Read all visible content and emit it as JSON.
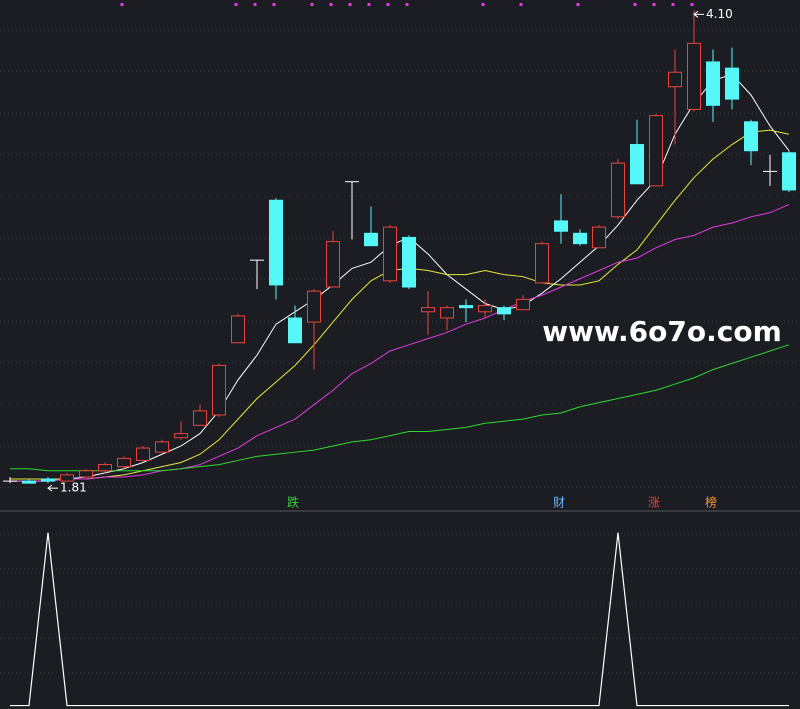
{
  "chart_data": [
    {
      "type": "candlestick",
      "open": [
        1.82,
        1.82,
        1.83,
        1.82,
        1.84,
        1.87,
        1.89,
        1.92,
        1.96,
        2.03,
        2.09,
        2.14,
        2.49,
        2.89,
        3.18,
        2.61,
        2.59,
        2.76,
        3.27,
        3.02,
        2.79,
        3.0,
        2.64,
        2.61,
        2.67,
        2.64,
        2.66,
        2.65,
        2.78,
        3.08,
        3.02,
        2.95,
        3.1,
        3.45,
        3.25,
        3.73,
        3.62,
        3.85,
        3.82,
        3.56,
        3.32,
        3.41
      ],
      "high": [
        1.84,
        1.83,
        1.84,
        1.86,
        1.88,
        1.91,
        1.94,
        1.99,
        2.02,
        2.11,
        2.19,
        2.39,
        2.63,
        2.89,
        3.19,
        2.67,
        2.75,
        3.03,
        3.27,
        3.15,
        3.06,
        3.01,
        2.74,
        2.67,
        2.7,
        2.7,
        2.67,
        2.72,
        2.98,
        3.21,
        3.04,
        3.06,
        3.38,
        3.57,
        3.6,
        3.91,
        4.1,
        3.91,
        3.92,
        3.57,
        3.4,
        3.42
      ],
      "low": [
        1.81,
        1.82,
        1.81,
        1.82,
        1.84,
        1.86,
        1.88,
        1.92,
        1.96,
        2.02,
        2.09,
        2.13,
        2.49,
        2.75,
        2.7,
        2.49,
        2.36,
        2.76,
        2.99,
        2.96,
        2.78,
        2.75,
        2.53,
        2.55,
        2.59,
        2.61,
        2.6,
        2.65,
        2.78,
        2.97,
        2.96,
        2.95,
        3.09,
        3.26,
        3.25,
        3.45,
        3.61,
        3.56,
        3.62,
        3.35,
        3.25,
        3.22
      ],
      "close": [
        1.82,
        1.81,
        1.82,
        1.85,
        1.87,
        1.9,
        1.93,
        1.98,
        2.01,
        2.05,
        2.16,
        2.38,
        2.62,
        2.89,
        2.77,
        2.49,
        2.74,
        2.98,
        3.27,
        2.96,
        3.05,
        2.76,
        2.66,
        2.66,
        2.66,
        2.67,
        2.63,
        2.7,
        2.97,
        3.03,
        2.97,
        3.05,
        3.36,
        3.26,
        3.59,
        3.8,
        3.94,
        3.64,
        3.67,
        3.42,
        3.32,
        3.23
      ],
      "up_color": "#e8443c",
      "down_color": "#55f7f7",
      "flat_color": "#ffffff",
      "series": [
        {
          "color": "#ffffff",
          "values": [
            1.82,
            1.82,
            1.82,
            1.83,
            1.84,
            1.86,
            1.88,
            1.91,
            1.95,
            1.99,
            2.05,
            2.16,
            2.31,
            2.43,
            2.58,
            2.64,
            2.7,
            2.77,
            2.85,
            2.88,
            2.96,
            3.0,
            2.92,
            2.82,
            2.75,
            2.68,
            2.65,
            2.67,
            2.73,
            2.8,
            2.88,
            2.96,
            3.06,
            3.18,
            3.28,
            3.5,
            3.65,
            3.76,
            3.79,
            3.69,
            3.54,
            3.42
          ]
        },
        {
          "color": "#e8e83a",
          "values": [
            1.83,
            1.83,
            1.83,
            1.83,
            1.83,
            1.84,
            1.85,
            1.87,
            1.89,
            1.91,
            1.95,
            2.02,
            2.12,
            2.22,
            2.3,
            2.38,
            2.48,
            2.59,
            2.7,
            2.79,
            2.84,
            2.85,
            2.84,
            2.82,
            2.82,
            2.84,
            2.82,
            2.81,
            2.78,
            2.77,
            2.77,
            2.79,
            2.87,
            2.94,
            3.06,
            3.18,
            3.29,
            3.38,
            3.45,
            3.51,
            3.52,
            3.5
          ]
        },
        {
          "color": "#e03ce0",
          "values": [
            1.82,
            1.82,
            1.82,
            1.83,
            1.83,
            1.84,
            1.84,
            1.85,
            1.87,
            1.88,
            1.9,
            1.94,
            1.98,
            2.04,
            2.08,
            2.12,
            2.19,
            2.26,
            2.34,
            2.39,
            2.45,
            2.48,
            2.51,
            2.54,
            2.58,
            2.61,
            2.65,
            2.69,
            2.72,
            2.76,
            2.8,
            2.84,
            2.88,
            2.9,
            2.95,
            2.99,
            3.01,
            3.05,
            3.07,
            3.1,
            3.12,
            3.16
          ]
        },
        {
          "color": "#2ed82e",
          "values": [
            1.88,
            1.88,
            1.87,
            1.87,
            1.87,
            1.87,
            1.87,
            1.87,
            1.87,
            1.88,
            1.89,
            1.9,
            1.92,
            1.94,
            1.95,
            1.96,
            1.97,
            1.99,
            2.01,
            2.02,
            2.04,
            2.06,
            2.06,
            2.07,
            2.08,
            2.1,
            2.11,
            2.12,
            2.14,
            2.15,
            2.18,
            2.2,
            2.22,
            2.24,
            2.26,
            2.29,
            2.32,
            2.36,
            2.39,
            2.42,
            2.45,
            2.48
          ]
        }
      ],
      "ylim": [
        1.68,
        4.15
      ],
      "annotations": [
        {
          "text": "4.10",
          "index": 36,
          "of": "high"
        },
        {
          "text": "1.81",
          "index": 2,
          "of": "low"
        }
      ],
      "signals": [
        {
          "text": "跌",
          "index": 15,
          "color": "#3ccf3c"
        },
        {
          "text": "财",
          "index": 29,
          "color": "#6ab8ff"
        },
        {
          "text": "涨",
          "index": 34,
          "color": "#e8443c"
        },
        {
          "text": "榜",
          "index": 37,
          "color": "#f09a30"
        }
      ],
      "markers": {
        "color": "#e03ce0",
        "indices": [
          6,
          12,
          13,
          14,
          16,
          17,
          18,
          19,
          20,
          21,
          25,
          27,
          30,
          33,
          34,
          35,
          36
        ]
      },
      "watermark": "www.6o7o.com"
    },
    {
      "type": "line",
      "color": "#ffffff",
      "values": [
        0,
        0,
        1,
        0,
        0,
        0,
        0,
        0,
        0,
        0,
        0,
        0,
        0,
        0,
        0,
        0,
        0,
        0,
        0,
        0,
        0,
        0,
        0,
        0,
        0,
        0,
        0,
        0,
        0,
        0,
        0,
        0,
        1,
        0,
        0,
        0,
        0,
        0,
        0,
        0,
        0,
        0
      ],
      "ylim": [
        -0.02,
        1.12
      ]
    }
  ]
}
